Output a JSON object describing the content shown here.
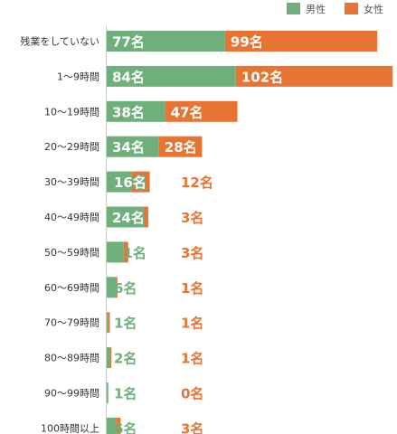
{
  "chart_data": {
    "type": "bar",
    "orientation": "horizontal",
    "stacked": true,
    "unit": "名",
    "categories": [
      "残業をしていない",
      "1～9時間",
      "10～19時間",
      "20～29時間",
      "30～39時間",
      "40～49時間",
      "50～59時間",
      "60～69時間",
      "70～79時間",
      "80～89時間",
      "90～99時間",
      "100時間以上"
    ],
    "series": [
      {
        "name": "男性",
        "color": "#6fb07a",
        "values": [
          77,
          84,
          38,
          34,
          16,
          24,
          11,
          6,
          1,
          2,
          1,
          6
        ]
      },
      {
        "name": "女性",
        "color": "#e87433",
        "values": [
          99,
          102,
          47,
          28,
          12,
          3,
          3,
          1,
          1,
          1,
          0,
          3
        ]
      }
    ],
    "legend_position": "top-right",
    "grid": false
  }
}
